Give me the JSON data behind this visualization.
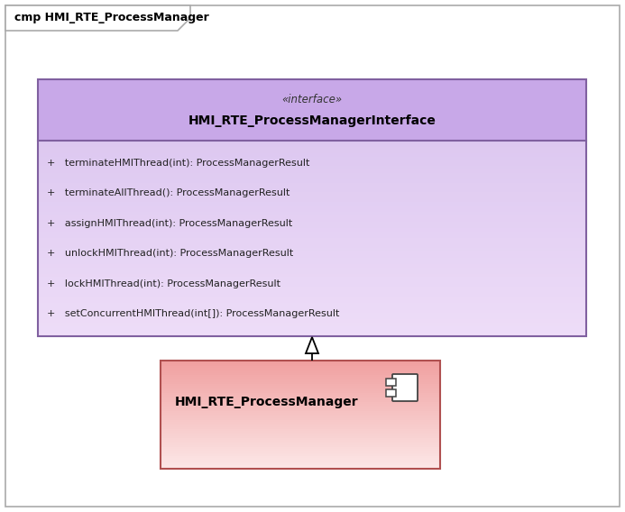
{
  "diagram_title": "cmp HMI_RTE_ProcessManager",
  "outer_border": "#aaaaaa",
  "interface_box": {
    "stereotype": "«interface»",
    "name": "HMI_RTE_ProcessManagerInterface",
    "header_bg": "#c8a8e8",
    "body_bg_top": "#ddc8f0",
    "body_bg_bottom": "#eeddf8",
    "border_color": "#8060a0",
    "methods": [
      "+   terminateHMIThread(int): ProcessManagerResult",
      "+   terminateAllThread(): ProcessManagerResult",
      "+   assignHMIThread(int): ProcessManagerResult",
      "+   unlockHMIThread(int): ProcessManagerResult",
      "+   lockHMIThread(int): ProcessManagerResult",
      "+   setConcurrentHMIThread(int[]): ProcessManagerResult"
    ]
  },
  "component_box": {
    "name": "HMI_RTE_ProcessManager",
    "bg_top": "#f0a0a0",
    "bg_bottom": "#fce8e8",
    "border_color": "#b05050"
  },
  "font_size_diagram_title": 9,
  "font_size_stereotype": 8.5,
  "font_size_interface_name": 10,
  "font_size_methods": 8,
  "font_size_component_name": 10
}
